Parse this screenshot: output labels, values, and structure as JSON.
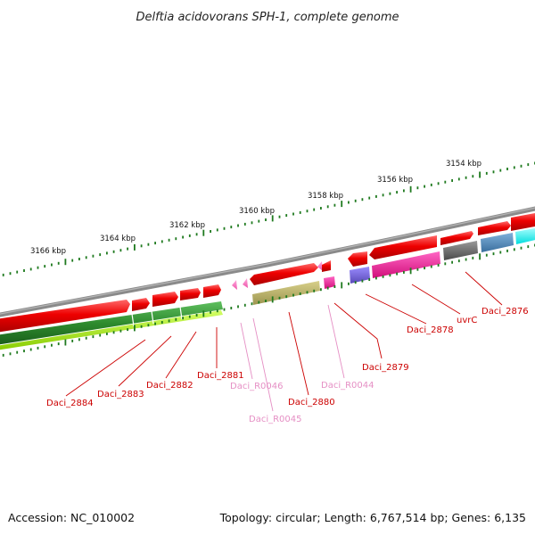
{
  "title": "Delftia acidovorans SPH-1, complete genome",
  "footer": {
    "accession": "Accession: NC_010002",
    "topology": "Topology: circular; Length: 6,767,514 bp; Genes: 6,135"
  },
  "ticks": [
    "3154 kbp",
    "3156 kbp",
    "3158 kbp",
    "3160 kbp",
    "3162 kbp",
    "3164 kbp",
    "3166 kbp"
  ],
  "genes": [
    {
      "label": "Daci_2876",
      "type": "CDS",
      "color": "#cc0000"
    },
    {
      "label": "uvrC",
      "type": "CDS",
      "color": "#cc0000"
    },
    {
      "label": "Daci_2878",
      "type": "CDS",
      "color": "#cc0000"
    },
    {
      "label": "Daci_2879",
      "type": "CDS",
      "color": "#cc0000"
    },
    {
      "label": "Daci_R0044",
      "type": "tRNA",
      "color": "#e58fc4"
    },
    {
      "label": "Daci_2880",
      "type": "CDS",
      "color": "#cc0000"
    },
    {
      "label": "Daci_R0045",
      "type": "tRNA",
      "color": "#e58fc4"
    },
    {
      "label": "Daci_R0046",
      "type": "tRNA",
      "color": "#e58fc4"
    },
    {
      "label": "Daci_2881",
      "type": "CDS",
      "color": "#cc0000"
    },
    {
      "label": "Daci_2882",
      "type": "CDS",
      "color": "#cc0000"
    },
    {
      "label": "Daci_2883",
      "type": "CDS",
      "color": "#cc0000"
    },
    {
      "label": "Daci_2884",
      "type": "CDS",
      "color": "#cc0000"
    }
  ],
  "colors": {
    "backbone": "#8a8a8a",
    "cds": "#ee0000",
    "trna": "#ff66cc",
    "tick": "#1f7a1f",
    "cog_green": "#2e8b2e",
    "cog_lime": "#99e000",
    "cog_magenta": "#ff1493",
    "cog_purple": "#6a5acd",
    "cog_olive": "#b8b060",
    "cog_gray": "#666666",
    "cog_steel": "#4682b4",
    "cog_cyan": "#00ffff"
  }
}
